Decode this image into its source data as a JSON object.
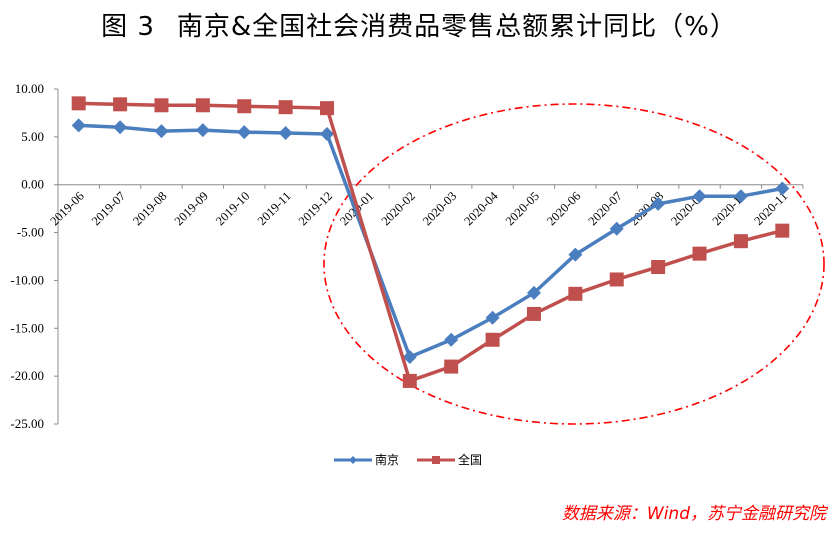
{
  "title": {
    "figure_label": "图 3",
    "text": "南京&全国社会消费品零售总额累计同比（%）"
  },
  "legend": [
    {
      "name": "南京",
      "color": "#4a7ebf",
      "marker": "diamond"
    },
    {
      "name": "全国",
      "color": "#c0504d",
      "marker": "square"
    }
  ],
  "source": "数据来源：Wind，苏宁金融研究院",
  "chart_data": {
    "type": "line",
    "title": "图 3 南京&全国社会消费品零售总额累计同比（%）",
    "xlabel": "",
    "ylabel": "",
    "ylim": [
      -25,
      10
    ],
    "yticks": [
      "10.00",
      "5.00",
      "0.00",
      "-5.00",
      "-10.00",
      "-15.00",
      "-20.00",
      "-25.00"
    ],
    "grid": false,
    "legend_position": "bottom",
    "categories": [
      "2019-06",
      "2019-07",
      "2019-08",
      "2019-09",
      "2019-10",
      "2019-11",
      "2019-12",
      "2020-01",
      "2020-02",
      "2020-03",
      "2020-04",
      "2020-05",
      "2020-06",
      "2020-07",
      "2020-08",
      "2020-09",
      "2020-10",
      "2020-11"
    ],
    "series": [
      {
        "name": "南京",
        "color": "#4a7ebf",
        "marker": "diamond",
        "values": [
          6.2,
          6.0,
          5.6,
          5.7,
          5.5,
          5.4,
          5.3,
          null,
          -18.0,
          -16.2,
          -13.9,
          -11.3,
          -7.3,
          -4.6,
          -2.0,
          -1.2,
          -1.2,
          -0.4
        ]
      },
      {
        "name": "全国",
        "color": "#c0504d",
        "marker": "square",
        "values": [
          8.5,
          8.4,
          8.3,
          8.3,
          8.2,
          8.1,
          8.0,
          null,
          -20.5,
          -19.0,
          -16.2,
          -13.5,
          -11.4,
          -9.9,
          -8.6,
          -7.2,
          -5.9,
          -4.8
        ]
      }
    ],
    "annotations": [
      {
        "type": "ellipse",
        "style": "dash-dot",
        "color": "#ff0000",
        "note": "highlights 2020 recovery period"
      }
    ]
  }
}
